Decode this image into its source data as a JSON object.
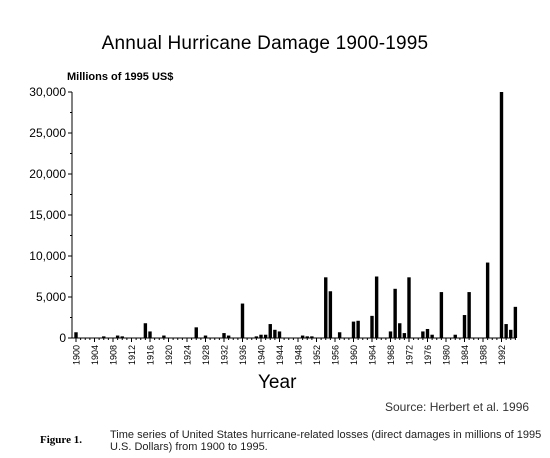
{
  "chart_data": {
    "type": "bar",
    "title": "Annual Hurricane Damage 1900-1995",
    "ylabel": "Millions of 1995 US$",
    "xlabel": "Year",
    "ylim": [
      0,
      30000
    ],
    "yticks": [
      0,
      5000,
      10000,
      15000,
      20000,
      25000,
      30000
    ],
    "ytick_labels": [
      "0",
      "5,000",
      "10,000",
      "15,000",
      "20,000",
      "25,000",
      "30,000"
    ],
    "xtick_labels": [
      "1900",
      "1904",
      "1908",
      "1912",
      "1916",
      "1920",
      "1924",
      "1928",
      "1932",
      "1936",
      "1940",
      "1944",
      "1948",
      "1952",
      "1956",
      "1960",
      "1964",
      "1968",
      "1972",
      "1976",
      "1980",
      "1984",
      "1988",
      "1992"
    ],
    "bar_color": "#000000",
    "x": [
      1900,
      1901,
      1902,
      1903,
      1904,
      1905,
      1906,
      1907,
      1908,
      1909,
      1910,
      1911,
      1912,
      1913,
      1914,
      1915,
      1916,
      1917,
      1918,
      1919,
      1920,
      1921,
      1922,
      1923,
      1924,
      1925,
      1926,
      1927,
      1928,
      1929,
      1930,
      1931,
      1932,
      1933,
      1934,
      1935,
      1936,
      1937,
      1938,
      1939,
      1940,
      1941,
      1942,
      1943,
      1944,
      1945,
      1946,
      1947,
      1948,
      1949,
      1950,
      1951,
      1952,
      1953,
      1954,
      1955,
      1956,
      1957,
      1958,
      1959,
      1960,
      1961,
      1962,
      1963,
      1964,
      1965,
      1966,
      1967,
      1968,
      1969,
      1970,
      1971,
      1972,
      1973,
      1974,
      1975,
      1976,
      1977,
      1978,
      1979,
      1980,
      1981,
      1982,
      1983,
      1984,
      1985,
      1986,
      1987,
      1988,
      1989,
      1990,
      1991,
      1992,
      1993,
      1994,
      1995
    ],
    "values": [
      700,
      0,
      0,
      0,
      0,
      0,
      200,
      0,
      0,
      300,
      200,
      0,
      0,
      0,
      0,
      1800,
      800,
      0,
      0,
      300,
      0,
      0,
      0,
      0,
      0,
      0,
      1300,
      0,
      300,
      0,
      0,
      0,
      600,
      300,
      0,
      0,
      4200,
      0,
      0,
      200,
      400,
      400,
      1700,
      1000,
      800,
      0,
      0,
      0,
      0,
      300,
      200,
      200,
      0,
      0,
      7400,
      5700,
      0,
      700,
      0,
      0,
      2000,
      2100,
      0,
      0,
      2700,
      7500,
      0,
      0,
      800,
      6000,
      1800,
      600,
      7400,
      0,
      0,
      800,
      1100,
      400,
      0,
      5600,
      0,
      0,
      400,
      0,
      2800,
      5600,
      0,
      0,
      0,
      9200,
      0,
      0,
      30000,
      1700,
      1000,
      3800
    ]
  },
  "source": "Source: Herbert et al. 1996",
  "figure_label": "Figure 1.",
  "caption": "Time series of United States hurricane-related losses (direct damages in millions of 1995 U.S. Dollars) from 1900 to 1995."
}
